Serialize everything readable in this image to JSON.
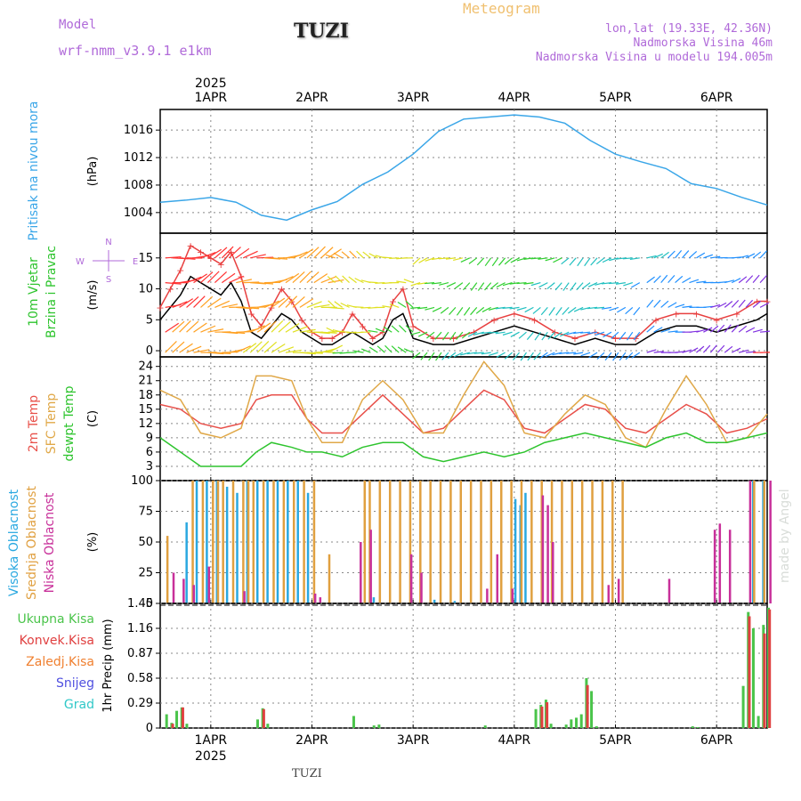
{
  "header": {
    "model_label": "Model",
    "model_name": "wrf-nmm_v3.9.1 e1km",
    "title": "TUZI",
    "meteogram": "Meteogram",
    "coords": "lon,lat (19.33E, 42.36N)",
    "elevation": "Nadmorska Visina 46m",
    "model_elevation": "Nadmorska Visina u modelu 194.005m"
  },
  "footer": {
    "location": "TUZI",
    "year": "2025",
    "credit": "made by Angel"
  },
  "colors": {
    "pressure": "#3aa6e8",
    "temp2m": "#e8504a",
    "sfc": "#e0a848",
    "dew": "#2ec42e",
    "high_cloud": "#2aa8e0",
    "mid_cloud": "#e0a040",
    "low_cloud": "#c8309a",
    "precip_total": "#4ac44a",
    "precip_conv": "#e04040",
    "precip_frz": "#f08030",
    "snow": "#5050e0",
    "hail": "#30c8c8",
    "wind_speed": "#000000",
    "gust": "#e84040",
    "grid": "#888888"
  },
  "chart_data": [
    {
      "type": "line",
      "panel": "pressure",
      "ylabel_left": "Pritisak na nivou mora",
      "unit": "(hPa)",
      "y_ticks": [
        1004,
        1008,
        1012,
        1016
      ],
      "ylim": [
        1001,
        1019
      ],
      "x_labels": [
        "1APR",
        "2APR",
        "3APR",
        "4APR",
        "5APR",
        "6APR"
      ],
      "x_start": 0.5,
      "x_end": 6.5,
      "series": [
        {
          "color_key": "pressure",
          "x": [
            0.5,
            0.75,
            1,
            1.25,
            1.5,
            1.75,
            2,
            2.25,
            2.5,
            2.75,
            3,
            3.25,
            3.5,
            3.75,
            4,
            4.25,
            4.5,
            4.75,
            5,
            5.25,
            5.5,
            5.75,
            6,
            6.25,
            6.5
          ],
          "y": [
            1005.5,
            1005.8,
            1006.2,
            1005.5,
            1003.6,
            1002.9,
            1004.4,
            1005.6,
            1008.1,
            1009.9,
            1012.5,
            1015.8,
            1017.6,
            1017.9,
            1018.2,
            1017.9,
            1017.0,
            1014.5,
            1012.5,
            1011.4,
            1010.4,
            1008.2,
            1007.5,
            1006.2,
            1005.1
          ]
        }
      ]
    },
    {
      "type": "line",
      "panel": "wind",
      "ylabel_left": [
        "10m Vjetar",
        "Brzina i Pravac"
      ],
      "unit": "(m/s)",
      "y_ticks": [
        0,
        5,
        10,
        15
      ],
      "ylim": [
        -1,
        19
      ],
      "compass": "N S E W",
      "series": [
        {
          "name": "speed",
          "color_key": "wind_speed",
          "x": [
            0.5,
            0.6,
            0.7,
            0.8,
            0.9,
            1.0,
            1.1,
            1.2,
            1.3,
            1.4,
            1.5,
            1.6,
            1.7,
            1.8,
            1.9,
            2.0,
            2.1,
            2.2,
            2.3,
            2.4,
            2.5,
            2.6,
            2.7,
            2.8,
            2.9,
            3.0,
            3.2,
            3.4,
            3.6,
            3.8,
            4.0,
            4.2,
            4.4,
            4.6,
            4.8,
            5.0,
            5.2,
            5.4,
            5.6,
            5.8,
            6.0,
            6.2,
            6.4,
            6.5
          ],
          "y": [
            5,
            7,
            9,
            12,
            11,
            10,
            9,
            11,
            8,
            3,
            2,
            4,
            6,
            5,
            3,
            2,
            1,
            1,
            2,
            3,
            2,
            1,
            2,
            5,
            6,
            2,
            1,
            1,
            2,
            3,
            4,
            3,
            2,
            1,
            2,
            1,
            1,
            3,
            4,
            4,
            3,
            4,
            5,
            6
          ]
        },
        {
          "name": "gust",
          "color_key": "gust",
          "x": [
            0.5,
            0.6,
            0.7,
            0.8,
            0.9,
            1.0,
            1.1,
            1.2,
            1.3,
            1.4,
            1.5,
            1.6,
            1.7,
            1.8,
            1.9,
            2.0,
            2.1,
            2.2,
            2.3,
            2.4,
            2.5,
            2.6,
            2.7,
            2.8,
            2.9,
            3.0,
            3.2,
            3.4,
            3.6,
            3.8,
            4.0,
            4.2,
            4.4,
            4.6,
            4.8,
            5.0,
            5.2,
            5.4,
            5.6,
            5.8,
            6.0,
            6.2,
            6.4,
            6.5
          ],
          "y": [
            7,
            10,
            13,
            17,
            16,
            15,
            14,
            16,
            12,
            6,
            4,
            7,
            10,
            8,
            5,
            3,
            2,
            2,
            3,
            6,
            4,
            2,
            3,
            8,
            10,
            4,
            2,
            2,
            3,
            5,
            6,
            5,
            3,
            2,
            3,
            2,
            2,
            5,
            6,
            6,
            5,
            6,
            8,
            8
          ]
        }
      ]
    },
    {
      "type": "line",
      "panel": "temperature",
      "ylabel_left": [
        "2m Temp",
        "SFC Temp",
        "dewpt Temp"
      ],
      "unit": "(C)",
      "y_ticks": [
        3,
        6,
        9,
        12,
        15,
        18,
        21,
        24
      ],
      "ylim": [
        0,
        26
      ],
      "series": [
        {
          "name": "2m Temp",
          "color_key": "temp2m",
          "x": [
            0.5,
            0.7,
            0.9,
            1.1,
            1.3,
            1.45,
            1.6,
            1.8,
            1.95,
            2.1,
            2.3,
            2.5,
            2.7,
            2.9,
            3.1,
            3.3,
            3.5,
            3.7,
            3.9,
            4.1,
            4.3,
            4.5,
            4.7,
            4.9,
            5.1,
            5.3,
            5.5,
            5.7,
            5.9,
            6.1,
            6.3,
            6.5
          ],
          "y": [
            16,
            15,
            12,
            11,
            12,
            17,
            18,
            18,
            13,
            10,
            10,
            14,
            18,
            14,
            10,
            11,
            15,
            19,
            17,
            11,
            10,
            13,
            16,
            15,
            11,
            10,
            13,
            16,
            14,
            10,
            11,
            13
          ]
        },
        {
          "name": "SFC Temp",
          "color_key": "sfc",
          "x": [
            0.5,
            0.7,
            0.9,
            1.1,
            1.3,
            1.45,
            1.6,
            1.8,
            1.95,
            2.1,
            2.3,
            2.5,
            2.7,
            2.9,
            3.1,
            3.3,
            3.5,
            3.7,
            3.9,
            4.1,
            4.3,
            4.5,
            4.7,
            4.9,
            5.1,
            5.3,
            5.5,
            5.7,
            5.9,
            6.1,
            6.3,
            6.5
          ],
          "y": [
            19,
            17,
            10,
            9,
            11,
            22,
            22,
            21,
            13,
            8,
            8,
            17,
            21,
            17,
            10,
            10,
            18,
            25,
            20,
            10,
            9,
            14,
            18,
            16,
            9,
            7,
            15,
            22,
            16,
            8,
            9,
            14
          ]
        },
        {
          "name": "dewpt Temp",
          "color_key": "dew",
          "x": [
            0.5,
            0.7,
            0.9,
            1.1,
            1.3,
            1.45,
            1.6,
            1.8,
            1.95,
            2.1,
            2.3,
            2.5,
            2.7,
            2.9,
            3.1,
            3.3,
            3.5,
            3.7,
            3.9,
            4.1,
            4.3,
            4.5,
            4.7,
            4.9,
            5.1,
            5.3,
            5.5,
            5.7,
            5.9,
            6.1,
            6.3,
            6.5
          ],
          "y": [
            9,
            6,
            3,
            3,
            3,
            6,
            8,
            7,
            6,
            6,
            5,
            7,
            8,
            8,
            5,
            4,
            5,
            6,
            5,
            6,
            8,
            9,
            10,
            9,
            8,
            7,
            9,
            10,
            8,
            8,
            9,
            10
          ]
        }
      ]
    },
    {
      "type": "bar",
      "panel": "clouds",
      "ylabel_left": [
        "Visoka Oblacnost",
        "Srednja Oblacnost",
        "Niska Oblacnost"
      ],
      "unit": "(%)",
      "y_ticks": [
        0,
        25,
        50,
        75,
        100
      ],
      "ylim": [
        0,
        100
      ],
      "series": [
        {
          "name": "Visoka Oblacnost",
          "color_key": "high_cloud",
          "x": [
            0.75,
            0.85,
            0.95,
            1.05,
            1.15,
            1.25,
            1.35,
            1.45,
            1.55,
            1.65,
            1.75,
            1.85,
            1.95,
            2.6,
            3.2,
            3.4,
            4.0,
            4.05,
            4.1,
            6.35,
            6.45
          ],
          "y": [
            66,
            100,
            100,
            100,
            95,
            90,
            100,
            100,
            100,
            100,
            100,
            100,
            90,
            5,
            3,
            2,
            85,
            80,
            90,
            100,
            100
          ]
        },
        {
          "name": "Srednja Oblacnost",
          "color_key": "mid_cloud",
          "x": [
            0.55,
            0.8,
            0.9,
            1.0,
            1.05,
            1.1,
            1.2,
            1.3,
            1.35,
            1.4,
            1.5,
            1.6,
            1.7,
            1.8,
            1.9,
            2.0,
            2.15,
            2.5,
            2.55,
            2.65,
            2.75,
            2.85,
            2.95,
            3.05,
            3.15,
            3.25,
            3.35,
            3.45,
            3.55,
            3.65,
            3.75,
            3.85,
            3.95,
            4.05,
            4.15,
            4.25,
            4.35,
            4.45,
            4.55,
            4.65,
            4.75,
            4.85,
            4.95,
            5.05,
            6.35,
            6.45
          ],
          "y": [
            55,
            100,
            100,
            100,
            100,
            100,
            100,
            100,
            100,
            100,
            100,
            100,
            100,
            100,
            100,
            100,
            40,
            100,
            100,
            100,
            100,
            100,
            100,
            100,
            100,
            100,
            100,
            100,
            100,
            100,
            100,
            100,
            100,
            100,
            100,
            100,
            100,
            100,
            100,
            100,
            100,
            100,
            100,
            100,
            100,
            100
          ]
        },
        {
          "name": "Niska Oblacnost",
          "color_key": "low_cloud",
          "x": [
            0.6,
            0.7,
            0.8,
            0.95,
            1.3,
            2.0,
            2.05,
            2.45,
            2.55,
            2.95,
            3.05,
            3.7,
            3.8,
            3.95,
            4.25,
            4.3,
            4.35,
            4.9,
            5.0,
            5.5,
            5.95,
            6.0,
            6.1,
            6.3,
            6.5
          ],
          "y": [
            25,
            20,
            15,
            30,
            10,
            8,
            5,
            50,
            60,
            40,
            25,
            12,
            40,
            12,
            88,
            80,
            50,
            15,
            20,
            20,
            60,
            65,
            60,
            100,
            100
          ]
        }
      ]
    },
    {
      "type": "bar",
      "panel": "precip",
      "ylabel_left": [
        "Ukupna Kisa",
        "Konvek.Kisa",
        "Zaledj.Kisa",
        "Snijeg",
        "Grad"
      ],
      "unit": "1hr Precip (mm)",
      "y_ticks": [
        0,
        0.29,
        0.58,
        0.87,
        1.16,
        1.45
      ],
      "ylim": [
        0,
        1.45
      ],
      "x_labels": [
        "1APR",
        "2APR",
        "3APR",
        "4APR",
        "5APR",
        "6APR"
      ],
      "series": [
        {
          "name": "Ukupna Kisa",
          "color_key": "precip_total",
          "x": [
            0.55,
            0.6,
            0.65,
            0.7,
            0.75,
            1.45,
            1.5,
            1.55,
            2.4,
            2.6,
            2.65,
            3.7,
            4.2,
            4.25,
            4.3,
            4.35,
            4.5,
            4.55,
            4.6,
            4.65,
            4.7,
            4.75,
            4.8,
            5.75,
            5.8,
            6.25,
            6.3,
            6.35,
            6.4,
            6.45,
            6.5
          ],
          "y": [
            0.16,
            0.06,
            0.2,
            0.24,
            0.05,
            0.1,
            0.23,
            0.05,
            0.14,
            0.03,
            0.04,
            0.03,
            0.22,
            0.27,
            0.33,
            0.05,
            0.04,
            0.1,
            0.12,
            0.16,
            0.58,
            0.43,
            0.02,
            0.02,
            0.01,
            0.49,
            1.35,
            1.16,
            0.14,
            1.2,
            1.4
          ]
        },
        {
          "name": "Konvek.Kisa",
          "color_key": "precip_conv",
          "x": [
            0.6,
            0.7,
            1.5,
            4.25,
            4.3,
            4.7,
            6.3,
            6.45,
            6.5
          ],
          "y": [
            0.05,
            0.24,
            0.22,
            0.25,
            0.3,
            0.5,
            1.3,
            1.1,
            1.38
          ]
        }
      ]
    }
  ]
}
